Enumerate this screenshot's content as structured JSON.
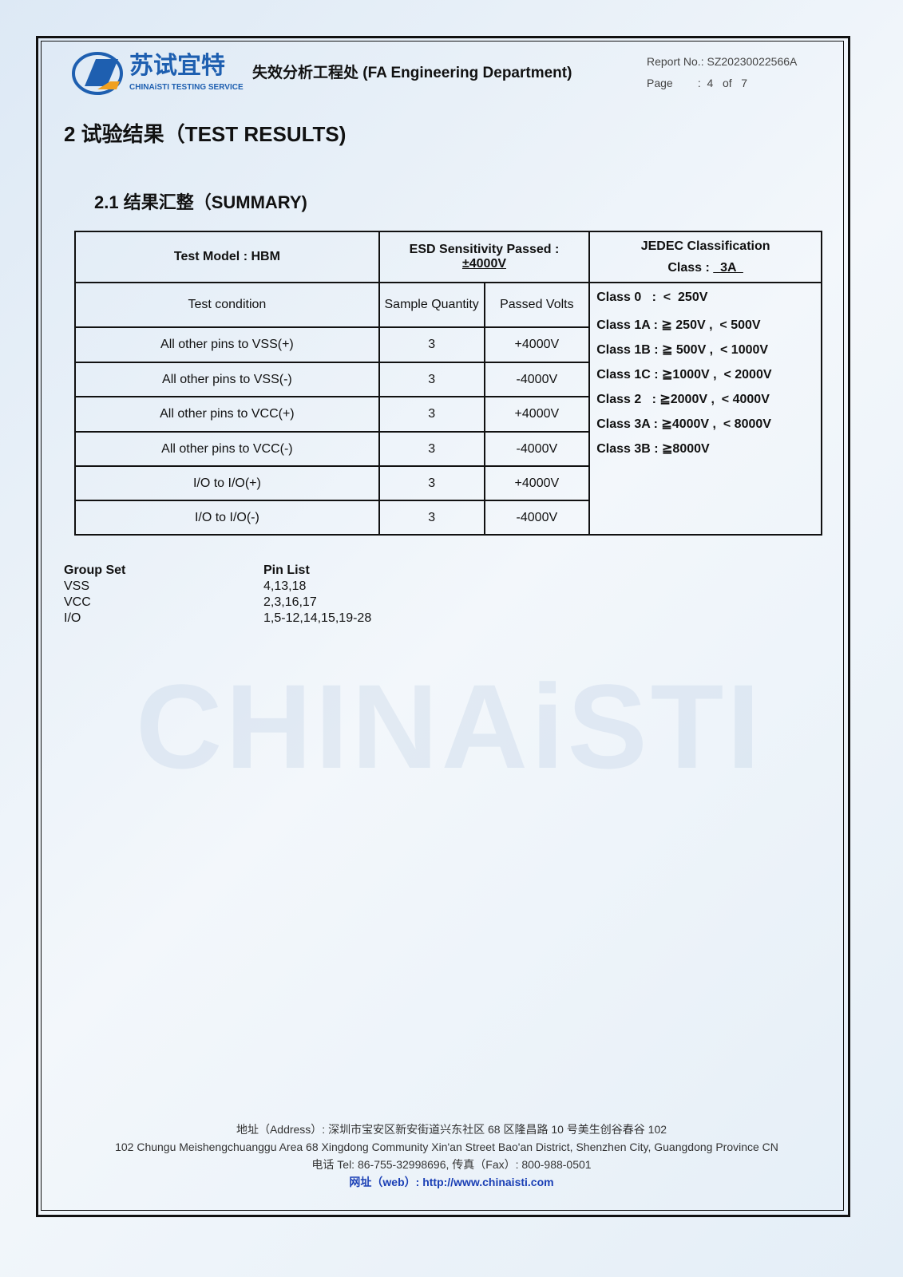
{
  "header": {
    "logo_cn": "苏试宜特",
    "logo_en": "CHINAiSTI TESTING SERVICE",
    "department": "失效分析工程处 (FA Engineering Department)",
    "report_no_label": "Report No.:",
    "report_no": "SZ20230022566A",
    "page_label": "Page",
    "page_value": ":  4   of   7"
  },
  "section": {
    "title": "2   试验结果（TEST RESULTS)",
    "subtitle": "2.1   结果汇整（SUMMARY)"
  },
  "table": {
    "test_model": "Test Model : HBM",
    "esd_label": "ESD Sensitivity Passed :",
    "esd_value": "±4000V",
    "jedec_title": "JEDEC Classification",
    "jedec_class_label": "Class : ",
    "jedec_class_value": "  3A  ",
    "columns": [
      "Test condition",
      "Sample Quantity",
      "Passed Volts"
    ],
    "rows": [
      [
        "All other pins to VSS(+)",
        "3",
        "+4000V"
      ],
      [
        "All other pins to VSS(-)",
        "3",
        "-4000V"
      ],
      [
        "All other pins to VCC(+)",
        "3",
        "+4000V"
      ],
      [
        "All other pins to VCC(-)",
        "3",
        "-4000V"
      ],
      [
        "I/O to I/O(+)",
        "3",
        "+4000V"
      ],
      [
        "I/O to I/O(-)",
        "3",
        "-4000V"
      ]
    ],
    "classes": [
      "Class 0   :  <  250V",
      "Class 1A : ≧ 250V ,  < 500V",
      "Class 1B : ≧ 500V ,  < 1000V",
      "Class 1C : ≧1000V ,  < 2000V",
      "Class 2   : ≧2000V ,  < 4000V",
      "Class 3A : ≧4000V ,  < 8000V",
      "Class 3B : ≧8000V"
    ]
  },
  "groups": {
    "header": [
      "Group Set",
      "Pin List"
    ],
    "rows": [
      [
        "VSS",
        "4,13,18"
      ],
      [
        "VCC",
        "2,3,16,17"
      ],
      [
        "I/O",
        "1,5-12,14,15,19-28"
      ]
    ]
  },
  "watermark": "CHINAiSTI",
  "footer": {
    "address_cn": "地址（Address）: 深圳市宝安区新安街道兴东社区 68 区隆昌路 10 号美生创谷春谷 102",
    "address_en": "102 Chungu Meishengchuanggu Area 68 Xingdong Community Xin'an Street Bao'an District, Shenzhen City, Guangdong Province CN",
    "phone": "电话 Tel: 86-755-32998696,  传真（Fax）: 800-988-0501",
    "web": "网址（web）: http://www.chinaisti.com"
  },
  "colors": {
    "brand": "#1e5fb0",
    "accent": "#f0a020"
  }
}
